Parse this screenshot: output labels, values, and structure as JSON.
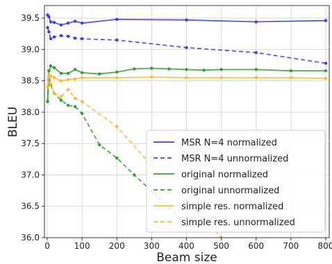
{
  "chart_data": {
    "type": "line",
    "title": "",
    "xlabel": "Beam size",
    "ylabel": "BLEU",
    "xlim": [
      -8,
      810
    ],
    "ylim": [
      36.0,
      39.7
    ],
    "xticks": [
      0,
      100,
      200,
      300,
      400,
      500,
      600,
      700,
      800
    ],
    "yticks": [
      36.0,
      36.5,
      37.0,
      37.5,
      38.0,
      38.5,
      39.0,
      39.5
    ],
    "grid": true,
    "legend_position": "bottom-right",
    "series": [
      {
        "name": "MSR N=4 normalized",
        "color": "#3b3bef",
        "dash": "solid",
        "x": [
          1,
          5,
          10,
          20,
          40,
          60,
          80,
          100,
          200,
          400,
          600,
          800
        ],
        "y": [
          39.55,
          39.52,
          39.44,
          39.43,
          39.39,
          39.42,
          39.45,
          39.42,
          39.48,
          39.47,
          39.44,
          39.46
        ]
      },
      {
        "name": "MSR N=4 unnormalized",
        "color": "#3b3bef",
        "dash": "dashed",
        "x": [
          1,
          5,
          10,
          20,
          40,
          60,
          80,
          100,
          200,
          400,
          600,
          800
        ],
        "y": [
          39.35,
          39.28,
          39.17,
          39.2,
          39.22,
          39.21,
          39.18,
          39.17,
          39.15,
          39.03,
          38.95,
          38.78
        ]
      },
      {
        "name": "original normalized",
        "color": "#2ca02c",
        "dash": "solid",
        "x": [
          1,
          5,
          10,
          20,
          40,
          60,
          80,
          100,
          150,
          200,
          250,
          300,
          350,
          400,
          450,
          500,
          600,
          700,
          800
        ],
        "y": [
          38.17,
          38.66,
          38.74,
          38.71,
          38.62,
          38.62,
          38.68,
          38.63,
          38.61,
          38.64,
          38.69,
          38.7,
          38.69,
          38.68,
          38.67,
          38.68,
          38.68,
          38.66,
          38.66
        ]
      },
      {
        "name": "original unnormalized",
        "color": "#2ca02c",
        "dash": "dashed",
        "x": [
          1,
          5,
          10,
          20,
          40,
          60,
          80,
          100,
          150,
          200,
          250,
          300,
          350,
          400
        ],
        "y": [
          38.17,
          38.52,
          38.44,
          38.3,
          38.19,
          38.11,
          38.09,
          37.98,
          37.48,
          37.27,
          37.0,
          36.74,
          36.48,
          36.2
        ]
      },
      {
        "name": "simple res. normalized",
        "color": "#ffb732",
        "dash": "solid",
        "x": [
          1,
          5,
          10,
          20,
          40,
          60,
          80,
          100,
          200,
          300,
          400,
          500,
          600,
          700,
          800
        ],
        "y": [
          38.4,
          38.58,
          38.58,
          38.55,
          38.5,
          38.52,
          38.53,
          38.55,
          38.55,
          38.56,
          38.55,
          38.55,
          38.55,
          38.55,
          38.54
        ]
      },
      {
        "name": "simple res. unnormalized",
        "color": "#ffb732",
        "dash": "dashed",
        "x": [
          1,
          5,
          10,
          20,
          40,
          60,
          80,
          100,
          200,
          300,
          400,
          500
        ],
        "y": [
          38.4,
          38.56,
          38.45,
          38.3,
          38.25,
          38.36,
          38.22,
          38.17,
          37.77,
          37.15,
          36.6,
          36.0
        ]
      }
    ]
  }
}
